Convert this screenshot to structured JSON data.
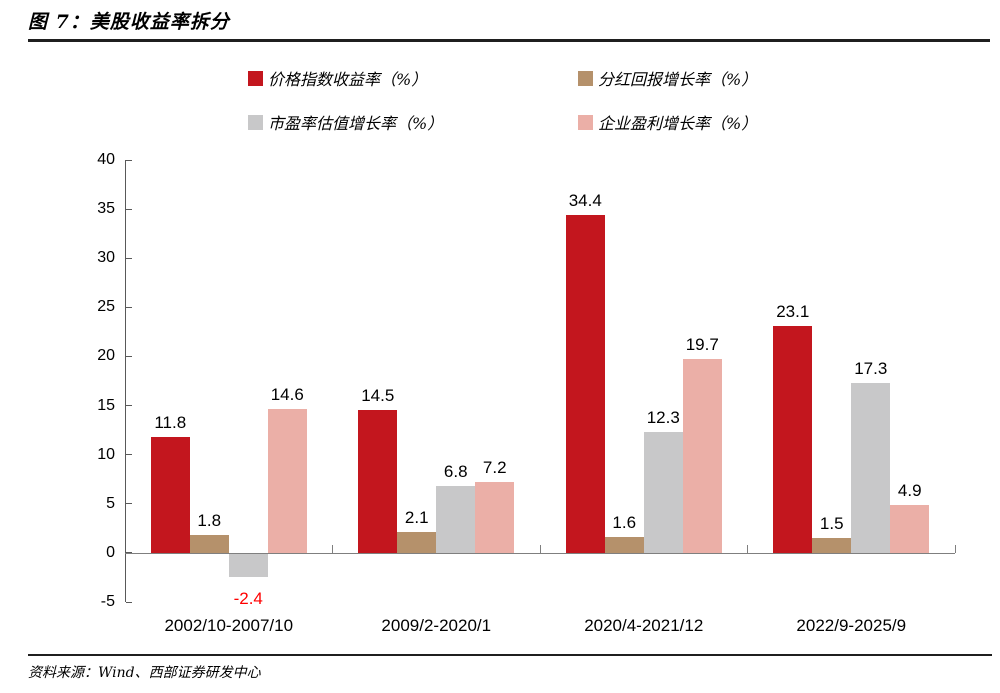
{
  "header": {
    "title": "图 7：美股收益率拆分"
  },
  "footer": {
    "source": "资料来源：Wind、西部证券研发中心"
  },
  "chart_data": {
    "type": "bar",
    "title": "美股收益率拆分",
    "categories": [
      "2002/10-2007/10",
      "2009/2-2020/1",
      "2020/4-2021/12",
      "2022/9-2025/9"
    ],
    "series": [
      {
        "name": "价格指数收益率（%）",
        "color": "#C3161E",
        "values": [
          11.8,
          14.5,
          34.4,
          23.1
        ]
      },
      {
        "name": "分红回报增长率（%）",
        "color": "#B5916B",
        "values": [
          1.8,
          2.1,
          1.6,
          1.5
        ]
      },
      {
        "name": "市盈率估值增长率（%）",
        "color": "#C8C8C9",
        "values": [
          -2.4,
          6.8,
          12.3,
          17.3
        ]
      },
      {
        "name": "企业盈利增长率（%）",
        "color": "#EBAFA7",
        "values": [
          14.6,
          7.2,
          19.7,
          4.9
        ]
      }
    ],
    "ylim": [
      -5,
      40
    ],
    "ytick_step": 5,
    "yticks": [
      40,
      35,
      30,
      25,
      20,
      15,
      10,
      5,
      0,
      -5
    ],
    "data_labels": true,
    "label_color": "#000000",
    "negative_label_color": "#FF0000",
    "axis_color": "#595959",
    "zero_line_color": "#7f7f7f",
    "legend_position": "top",
    "grid": false,
    "xlabel": "",
    "ylabel": ""
  }
}
